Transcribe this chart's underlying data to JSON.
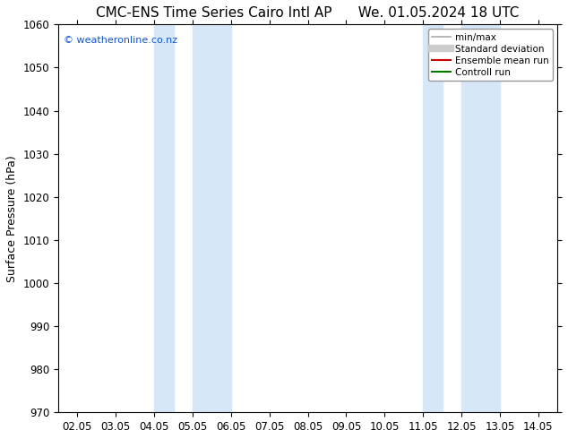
{
  "title_left": "CMC-ENS Time Series Cairo Intl AP",
  "title_right": "We. 01.05.2024 18 UTC",
  "ylabel": "Surface Pressure (hPa)",
  "ylim": [
    970,
    1060
  ],
  "yticks": [
    970,
    980,
    990,
    1000,
    1010,
    1020,
    1030,
    1040,
    1050,
    1060
  ],
  "xtick_labels": [
    "02.05",
    "03.05",
    "04.05",
    "05.05",
    "06.05",
    "07.05",
    "08.05",
    "09.05",
    "10.05",
    "11.05",
    "12.05",
    "13.05",
    "14.05"
  ],
  "xtick_positions": [
    0,
    1,
    2,
    3,
    4,
    5,
    6,
    7,
    8,
    9,
    10,
    11,
    12
  ],
  "shaded_bands": [
    {
      "x_start": 2.0,
      "x_end": 2.5
    },
    {
      "x_start": 3.0,
      "x_end": 4.0
    },
    {
      "x_start": 9.0,
      "x_end": 9.5
    },
    {
      "x_start": 10.0,
      "x_end": 11.0
    }
  ],
  "shade_color": "#d6e8f7",
  "background_color": "#ffffff",
  "watermark": "© weatheronline.co.nz",
  "watermark_color": "#1155cc",
  "legend_labels": [
    "min/max",
    "Standard deviation",
    "Ensemble mean run",
    "Controll run"
  ],
  "legend_line_colors": [
    "#aaaaaa",
    "#cccccc",
    "#cc0000",
    "#007700"
  ],
  "title_fontsize": 11,
  "axis_fontsize": 9,
  "tick_fontsize": 8.5
}
